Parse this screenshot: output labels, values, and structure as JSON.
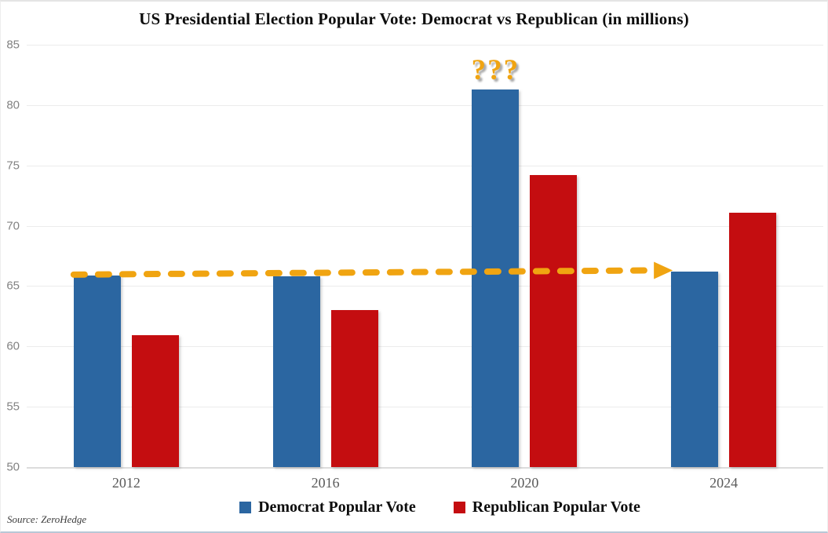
{
  "chart_data": {
    "type": "bar",
    "title": "US Presidential Election Popular Vote: Democrat vs Republican (in millions)",
    "categories": [
      "2012",
      "2016",
      "2020",
      "2024"
    ],
    "series": [
      {
        "name": "Democrat Popular Vote",
        "color": "#2B66A1",
        "values": [
          65.9,
          65.8,
          81.3,
          66.2
        ]
      },
      {
        "name": "Republican Popular Vote",
        "color": "#C40D10",
        "values": [
          60.9,
          63.0,
          74.2,
          71.1
        ]
      }
    ],
    "xlabel": "",
    "ylabel": "",
    "ylim": [
      50,
      85
    ],
    "yticks": [
      50,
      55,
      60,
      65,
      70,
      75,
      80,
      85
    ],
    "grid": true,
    "legend_position": "bottom",
    "annotations": [
      {
        "id": "flat-dem-vote-arrow",
        "type": "dashed-arrow",
        "color": "#F0A411",
        "from_category": "2012",
        "to_category": "2024",
        "value_start": 65.95,
        "value_end": 66.3
      },
      {
        "id": "question-marks-2020",
        "type": "text",
        "text": "???",
        "color": "#F0A411",
        "category": "2020",
        "series": "Democrat Popular Vote",
        "at_value": 81.3
      }
    ],
    "source": "Source: ZeroHedge"
  }
}
